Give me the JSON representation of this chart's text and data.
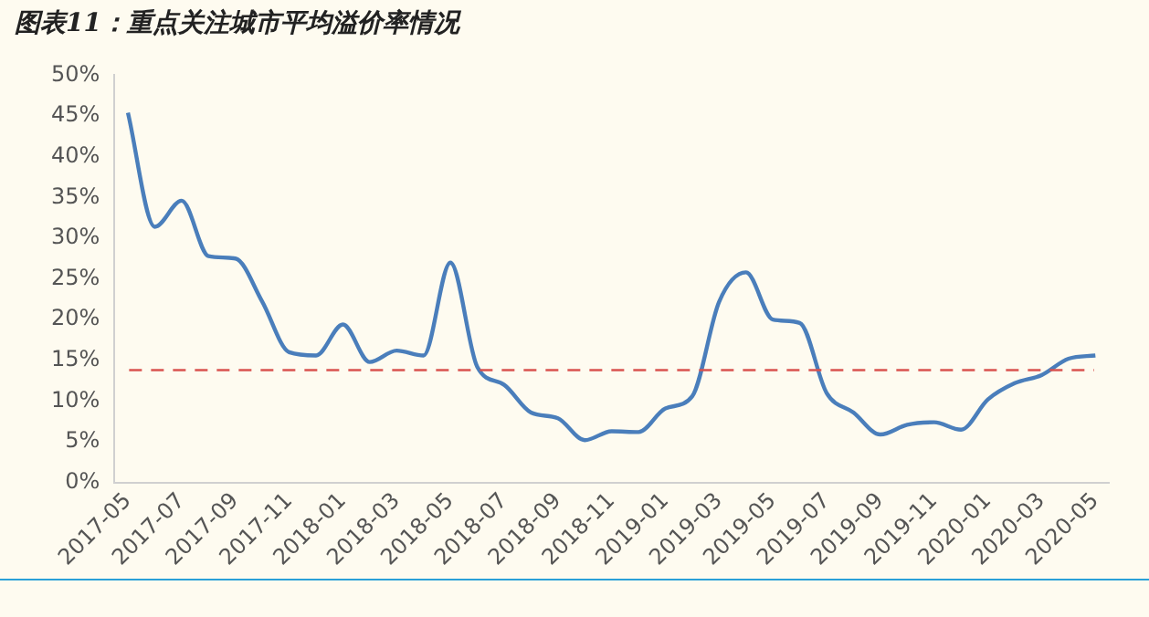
{
  "chart_data": {
    "type": "line",
    "title": "图表11：重点关注城市平均溢价率情况",
    "categories": [
      "2017-05",
      null,
      "2017-07",
      null,
      "2017-09",
      null,
      "2017-11",
      null,
      "2018-01",
      null,
      "2018-03",
      null,
      "2018-05",
      null,
      "2018-07",
      null,
      "2018-09",
      null,
      "2018-11",
      null,
      "2019-01",
      null,
      "2019-03",
      null,
      "2019-05",
      null,
      "2019-07",
      null,
      "2019-09",
      null,
      "2019-11",
      null,
      "2020-01",
      null,
      "2020-03",
      null,
      "2020-05"
    ],
    "series": [
      {
        "color": "#4a7ebb",
        "values": [
          45.4,
          31.4,
          34.6,
          27.8,
          27.5,
          22.2,
          16,
          15.6,
          19.4,
          14.8,
          16.2,
          15.6,
          27,
          14.2,
          12,
          8.6,
          7.9,
          5.2,
          6.3,
          6.2,
          9.1,
          10.6,
          22.2,
          25.8,
          20,
          19.6,
          11,
          8.6,
          5.9,
          7.1,
          7.4,
          6.5,
          10.2,
          12.2,
          13.2,
          15.2,
          15.6
        ]
      }
    ],
    "ylim": [
      0,
      50
    ],
    "yticks": [
      {
        "value": 0,
        "label": "0%"
      },
      {
        "value": 5,
        "label": "5%"
      },
      {
        "value": 10,
        "label": "10%"
      },
      {
        "value": 15,
        "label": "15%"
      },
      {
        "value": 20,
        "label": "20%"
      },
      {
        "value": 25,
        "label": "25%"
      },
      {
        "value": 30,
        "label": "30%"
      },
      {
        "value": 35,
        "label": "35%"
      },
      {
        "value": 40,
        "label": "40%"
      },
      {
        "value": 45,
        "label": "45%"
      },
      {
        "value": 50,
        "label": "50%"
      }
    ],
    "ref_lines": [
      {
        "axis": "y",
        "value": 13.8,
        "color": "#d9534f",
        "line_style": "dashed"
      }
    ],
    "grid": false,
    "legend": false,
    "marker": "none",
    "line_style": "solid"
  }
}
